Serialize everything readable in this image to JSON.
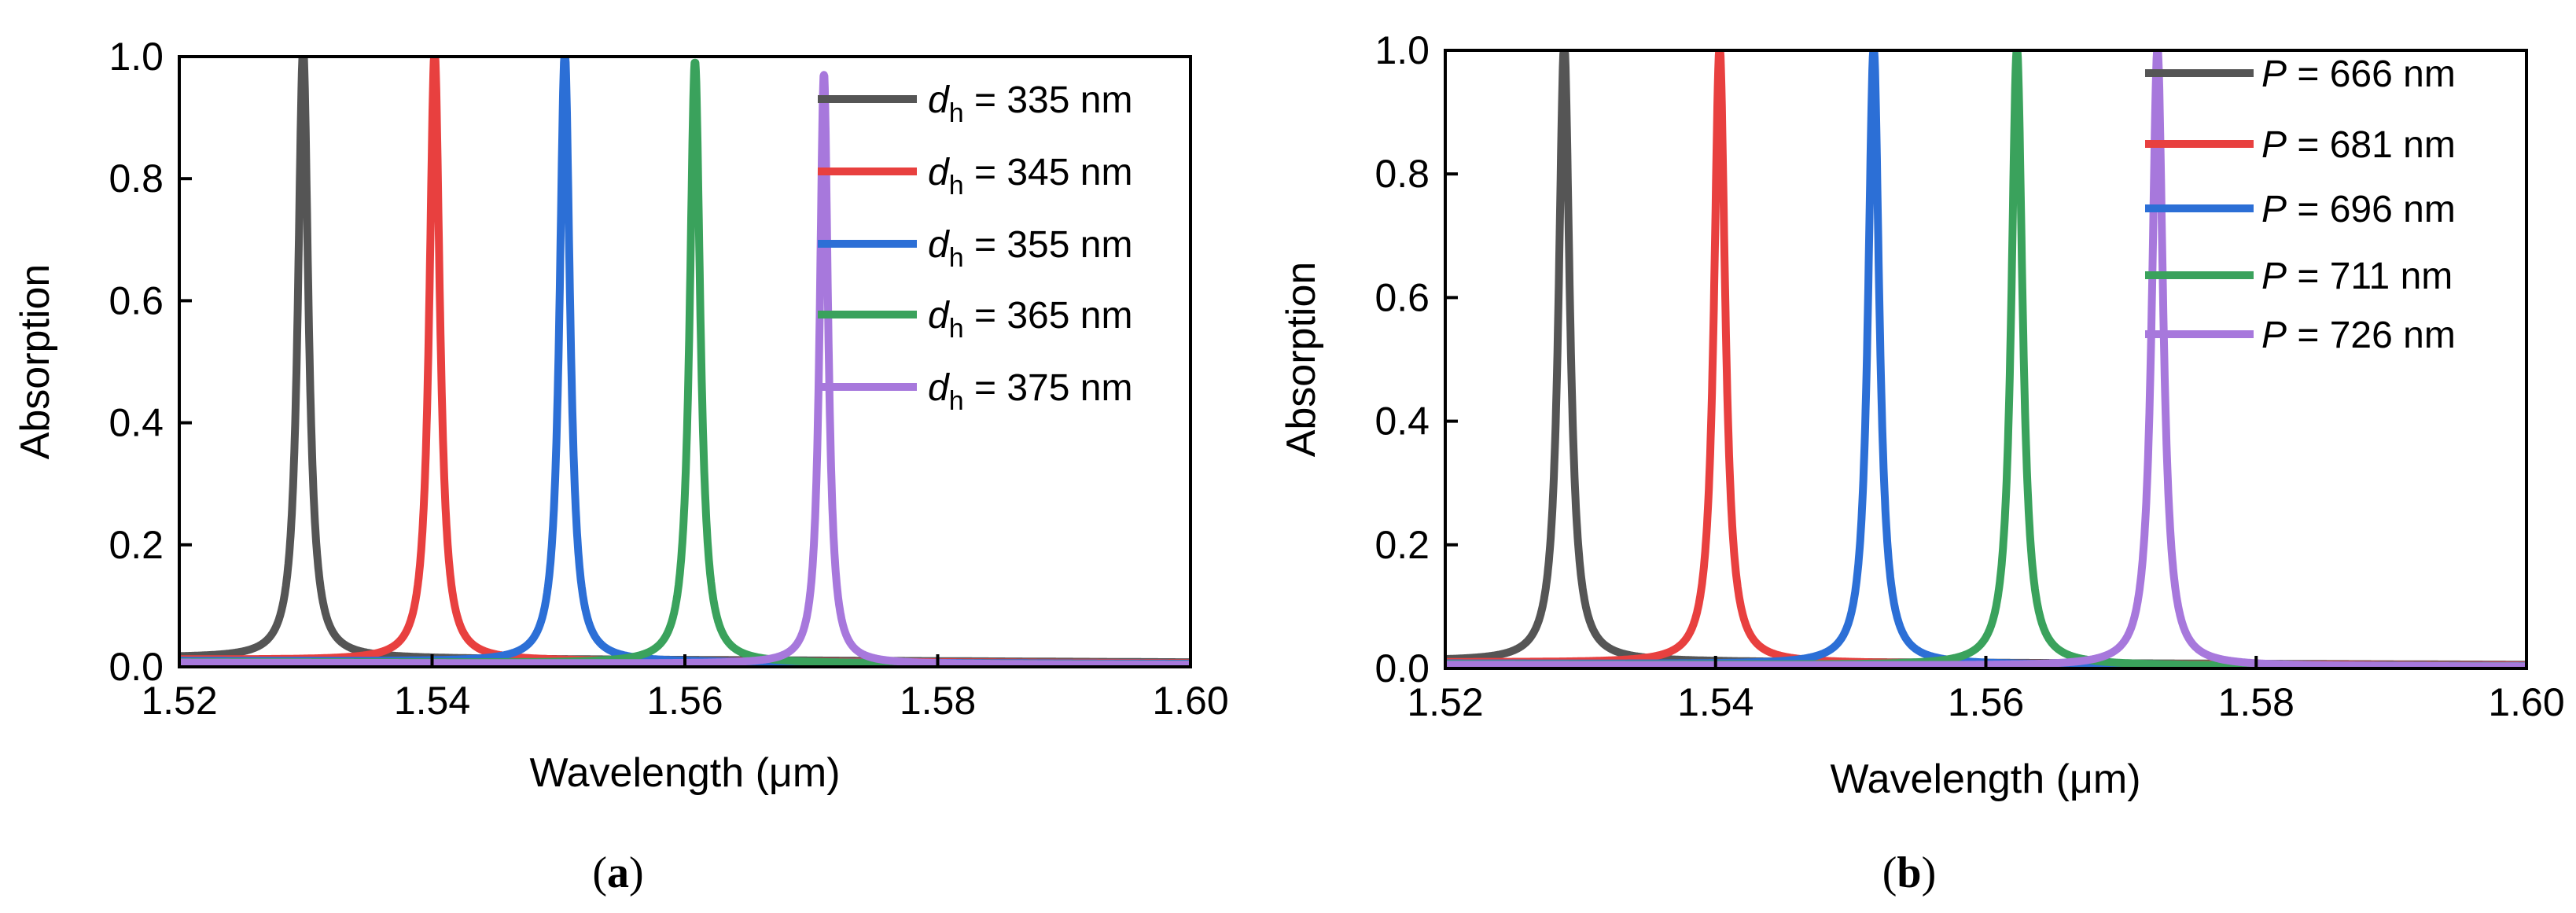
{
  "chart_data": [
    {
      "type": "line",
      "panel_label": "a",
      "xlabel": "Wavelength (μm)",
      "ylabel": "Absorption",
      "xlim": [
        1.52,
        1.6
      ],
      "ylim": [
        0.0,
        1.0
      ],
      "xticks": [
        1.52,
        1.54,
        1.56,
        1.58,
        1.6
      ],
      "xtick_labels": [
        "1.52",
        "1.54",
        "1.56",
        "1.58",
        "1.60"
      ],
      "yticks": [
        0.0,
        0.2,
        0.4,
        0.6,
        0.8,
        1.0
      ],
      "ytick_labels": [
        "0.0",
        "0.2",
        "0.4",
        "0.6",
        "0.8",
        "1.0"
      ],
      "legend_position": "top-right",
      "series": [
        {
          "name": "d",
          "subscript": "h",
          "value_text": " = 335 nm",
          "color": "#555555",
          "peak_x": 1.5298,
          "peak_y": 1.0,
          "fwhm": 0.001,
          "baseline": 0.015
        },
        {
          "name": "d",
          "subscript": "h",
          "value_text": " = 345 nm",
          "color": "#e8403f",
          "peak_x": 1.5402,
          "peak_y": 1.0,
          "fwhm": 0.001,
          "baseline": 0.012
        },
        {
          "name": "d",
          "subscript": "h",
          "value_text": " = 355 nm",
          "color": "#2c6fd6",
          "peak_x": 1.5505,
          "peak_y": 1.0,
          "fwhm": 0.001,
          "baseline": 0.01
        },
        {
          "name": "d",
          "subscript": "h",
          "value_text": " = 365 nm",
          "color": "#3aa25c",
          "peak_x": 1.5608,
          "peak_y": 0.99,
          "fwhm": 0.001,
          "baseline": 0.008
        },
        {
          "name": "d",
          "subscript": "h",
          "value_text": " = 375 nm",
          "color": "#a778dc",
          "peak_x": 1.571,
          "peak_y": 0.97,
          "fwhm": 0.0008,
          "baseline": 0.007
        }
      ]
    },
    {
      "type": "line",
      "panel_label": "b",
      "xlabel": "Wavelength (μm)",
      "ylabel": "Absorption",
      "xlim": [
        1.52,
        1.6
      ],
      "ylim": [
        0.0,
        1.0
      ],
      "xticks": [
        1.52,
        1.54,
        1.56,
        1.58,
        1.6
      ],
      "xtick_labels": [
        "1.52",
        "1.54",
        "1.56",
        "1.58",
        "1.60"
      ],
      "yticks": [
        0.0,
        0.2,
        0.4,
        0.6,
        0.8,
        1.0
      ],
      "ytick_labels": [
        "0.0",
        "0.2",
        "0.4",
        "0.6",
        "0.8",
        "1.0"
      ],
      "legend_position": "top-right",
      "series": [
        {
          "name": "P",
          "subscript": "",
          "value_text": " = 666 nm",
          "color": "#555555",
          "peak_x": 1.5288,
          "peak_y": 1.0,
          "fwhm": 0.001,
          "baseline": 0.012
        },
        {
          "name": "P",
          "subscript": "",
          "value_text": " = 681 nm",
          "color": "#e8403f",
          "peak_x": 1.5403,
          "peak_y": 1.0,
          "fwhm": 0.001,
          "baseline": 0.01
        },
        {
          "name": "P",
          "subscript": "",
          "value_text": " = 696 nm",
          "color": "#2c6fd6",
          "peak_x": 1.5517,
          "peak_y": 1.0,
          "fwhm": 0.001,
          "baseline": 0.008
        },
        {
          "name": "P",
          "subscript": "",
          "value_text": " = 711 nm",
          "color": "#3aa25c",
          "peak_x": 1.5623,
          "peak_y": 1.0,
          "fwhm": 0.001,
          "baseline": 0.007
        },
        {
          "name": "P",
          "subscript": "",
          "value_text": " = 726 nm",
          "color": "#a778dc",
          "peak_x": 1.5727,
          "peak_y": 1.0,
          "fwhm": 0.001,
          "baseline": 0.006
        }
      ]
    }
  ]
}
